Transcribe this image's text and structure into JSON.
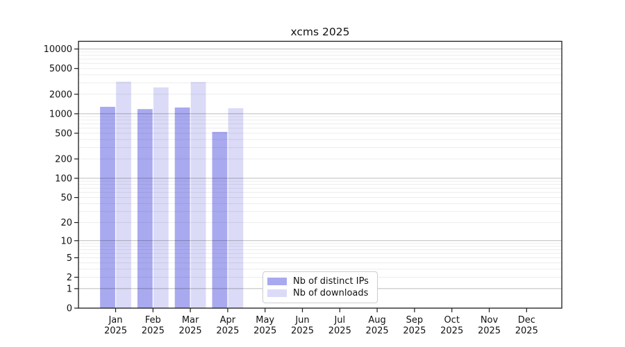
{
  "title": "xcms 2025",
  "colors": {
    "ips_bar": "#a9a9f0",
    "downloads_bar": "#dbdbf8",
    "axis": "#1a1a1a",
    "grid_major": "rgba(0,0,0,0.27)",
    "grid_minor": "rgba(0,0,0,0.075)"
  },
  "legend": {
    "items": [
      {
        "label": "Nb of distinct IPs",
        "color_key": "ips_bar"
      },
      {
        "label": "Nb of downloads",
        "color_key": "downloads_bar"
      }
    ]
  },
  "chart_data": {
    "type": "bar",
    "title": "xcms 2025",
    "months": [
      "Jan",
      "Feb",
      "Mar",
      "Apr",
      "May",
      "Jun",
      "Jul",
      "Aug",
      "Sep",
      "Oct",
      "Nov",
      "Dec"
    ],
    "year_label": "2025",
    "categories": [
      "Jan 2025",
      "Feb 2025",
      "Mar 2025",
      "Apr 2025",
      "May 2025",
      "Jun 2025",
      "Jul 2025",
      "Aug 2025",
      "Sep 2025",
      "Oct 2025",
      "Nov 2025",
      "Dec 2025"
    ],
    "series": [
      {
        "name": "Nb of distinct IPs",
        "color_key": "ips_bar",
        "values": [
          1280,
          1180,
          1250,
          525,
          null,
          null,
          null,
          null,
          null,
          null,
          null,
          null
        ]
      },
      {
        "name": "Nb of downloads",
        "color_key": "downloads_bar",
        "values": [
          3130,
          2550,
          3090,
          1220,
          null,
          null,
          null,
          null,
          null,
          null,
          null,
          null
        ]
      }
    ],
    "y_scale": "log10(value+1), 0 shown at baseline",
    "y_ticks": [
      10000,
      5000,
      2000,
      1000,
      500,
      200,
      100,
      50,
      20,
      10,
      5,
      2,
      1,
      0
    ],
    "ylim": [
      0,
      13150
    ],
    "grid": true,
    "grid_minor_per_decade": [
      2,
      3,
      4,
      5,
      6,
      7,
      8,
      9
    ],
    "legend_position": "lower center-right, inside axes",
    "xlabel": "",
    "ylabel": ""
  }
}
